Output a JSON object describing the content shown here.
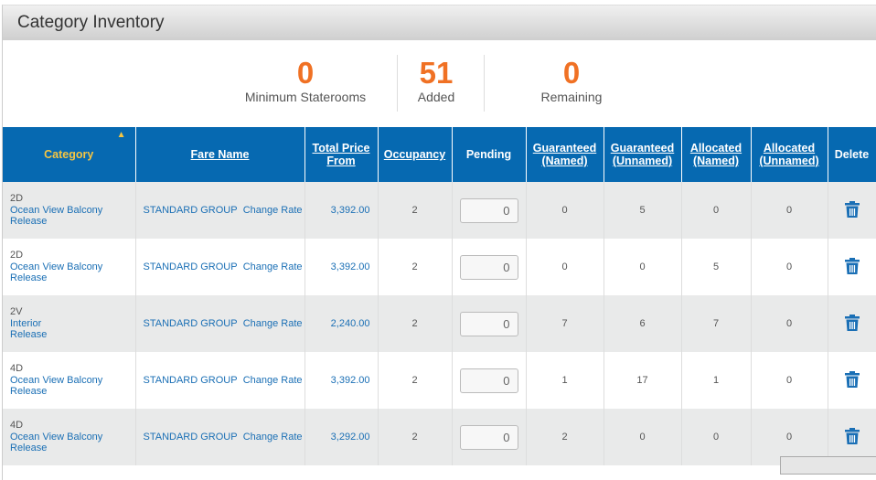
{
  "title": "Category Inventory",
  "stats": [
    {
      "value": "0",
      "label": "Minimum Staterooms"
    },
    {
      "value": "51",
      "label": "Added"
    },
    {
      "value": "0",
      "label": "Remaining"
    }
  ],
  "colors": {
    "accent": "#f07124",
    "header": "#0669b1",
    "sort": "#f5c542"
  },
  "columns": [
    "Category",
    "Fare Name",
    "Total Price From",
    "Occupancy",
    "Pending",
    "Guaranteed (Named)",
    "Guaranteed (Unnamed)",
    "Allocated (Named)",
    "Allocated (Unnamed)",
    "Delete"
  ],
  "sort": {
    "column": "Category",
    "direction": "ascending",
    "icon": "sort-up-icon"
  },
  "rows": [
    {
      "code": "2D",
      "type": "Ocean View Balcony",
      "status": "Release",
      "fare": "STANDARD GROUP",
      "fare_link": "Change Rate",
      "price": "3,392.00",
      "occupancy": "2",
      "pending": "0",
      "g_named": "0",
      "g_unnamed": "5",
      "a_named": "0",
      "a_unnamed": "0"
    },
    {
      "code": "2D",
      "type": "Ocean View Balcony",
      "status": "Release",
      "fare": "STANDARD GROUP",
      "fare_link": "Change Rate",
      "price": "3,392.00",
      "occupancy": "2",
      "pending": "0",
      "g_named": "0",
      "g_unnamed": "0",
      "a_named": "5",
      "a_unnamed": "0"
    },
    {
      "code": "2V",
      "type": "Interior",
      "status": "Release",
      "fare": "STANDARD GROUP",
      "fare_link": "Change Rate",
      "price": "2,240.00",
      "occupancy": "2",
      "pending": "0",
      "g_named": "7",
      "g_unnamed": "6",
      "a_named": "7",
      "a_unnamed": "0"
    },
    {
      "code": "4D",
      "type": "Ocean View Balcony",
      "status": "Release",
      "fare": "STANDARD GROUP",
      "fare_link": "Change Rate",
      "price": "3,392.00",
      "occupancy": "2",
      "pending": "0",
      "g_named": "1",
      "g_unnamed": "17",
      "a_named": "1",
      "a_unnamed": "0"
    },
    {
      "code": "4D",
      "type": "Ocean View Balcony",
      "status": "Release",
      "fare": "STANDARD GROUP",
      "fare_link": "Change Rate",
      "price": "3,292.00",
      "occupancy": "2",
      "pending": "0",
      "g_named": "2",
      "g_unnamed": "0",
      "a_named": "0",
      "a_unnamed": "0"
    }
  ]
}
